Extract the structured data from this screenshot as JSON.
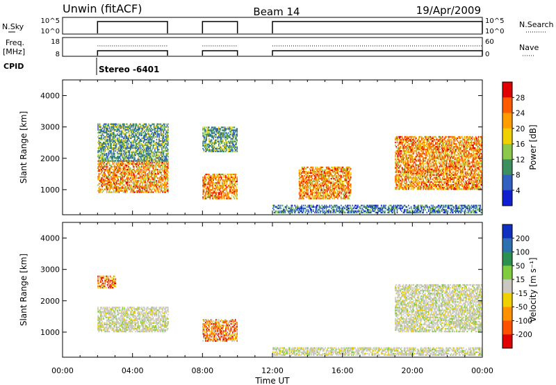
{
  "header": {
    "station": "Unwin (fitACF)",
    "beam": "Beam 14",
    "date": "19/Apr/2009"
  },
  "summary_panels": {
    "nsky_label": "N.Sky",
    "nsky_ticks": [
      "10^5",
      "10^0"
    ],
    "nsearch_label": "N.Search",
    "nsearch_ticks": [
      "10^5",
      "10^0"
    ],
    "freq_label": "Freq.",
    "freq_unit": "[MHz]",
    "freq_ticks": [
      "18",
      "8"
    ],
    "nave_label": "Nave",
    "nave_ticks": [
      "60",
      "0"
    ],
    "cpid_label": "CPID",
    "cpid_value": "Stereo -6401"
  },
  "chart_data": [
    {
      "type": "heatmap",
      "name": "power",
      "ylabel": "Slant Range [km]",
      "yticks": [
        1000,
        2000,
        3000,
        4000
      ],
      "ylim": [
        200,
        4500
      ],
      "xlim": [
        0,
        24
      ],
      "colorbar": {
        "label": "Power [dB]",
        "ticks": [
          "28",
          "24",
          "20",
          "16",
          "12",
          "8",
          "4"
        ],
        "colors": [
          "#e00000",
          "#ff5a00",
          "#ff9c00",
          "#f0d000",
          "#8cc84a",
          "#3c9060",
          "#3060c0",
          "#1020d0"
        ]
      },
      "echo_regions": [
        {
          "t0": 2.0,
          "t1": 6.0,
          "r0": 900,
          "r1": 1900,
          "level": "high"
        },
        {
          "t0": 2.0,
          "t1": 6.0,
          "r0": 1900,
          "r1": 3100,
          "level": "mid"
        },
        {
          "t0": 8.0,
          "t1": 10.0,
          "r0": 700,
          "r1": 1500,
          "level": "high"
        },
        {
          "t0": 8.0,
          "t1": 10.0,
          "r0": 2200,
          "r1": 3000,
          "level": "mid"
        },
        {
          "t0": 12.0,
          "t1": 24.0,
          "r0": 250,
          "r1": 500,
          "level": "low"
        },
        {
          "t0": 13.5,
          "t1": 16.5,
          "r0": 700,
          "r1": 1700,
          "level": "high"
        },
        {
          "t0": 19.0,
          "t1": 24.0,
          "r0": 1000,
          "r1": 2700,
          "level": "high"
        }
      ]
    },
    {
      "type": "heatmap",
      "name": "velocity",
      "xlabel": "Time UT",
      "xticks": [
        "00:00",
        "04:00",
        "08:00",
        "12:00",
        "16:00",
        "20:00",
        "00:00"
      ],
      "ylabel": "Slant Range [km]",
      "yticks": [
        1000,
        2000,
        3000,
        4000
      ],
      "ylim": [
        200,
        4500
      ],
      "xlim": [
        0,
        24
      ],
      "colorbar": {
        "label": "Velocity [m s⁻¹]",
        "ticks": [
          "200",
          "100",
          "50",
          "15",
          "-15",
          "-50",
          "-100",
          "-200"
        ],
        "colors": [
          "#1030c0",
          "#2c70b0",
          "#2c9050",
          "#80cc40",
          "#c8c8c0",
          "#f0d000",
          "#ff9000",
          "#ff5000",
          "#e00000"
        ]
      },
      "echo_regions": [
        {
          "t0": 2.0,
          "t1": 6.0,
          "r0": 1000,
          "r1": 1800,
          "level": "ground"
        },
        {
          "t0": 2.0,
          "t1": 3.0,
          "r0": 2400,
          "r1": 2800,
          "level": "negative"
        },
        {
          "t0": 8.0,
          "t1": 10.0,
          "r0": 700,
          "r1": 1400,
          "level": "negative"
        },
        {
          "t0": 12.0,
          "t1": 24.0,
          "r0": 250,
          "r1": 500,
          "level": "ground"
        },
        {
          "t0": 19.0,
          "t1": 24.0,
          "r0": 1000,
          "r1": 2500,
          "level": "ground"
        }
      ]
    }
  ],
  "operating_intervals": [
    [
      2.0,
      6.0
    ],
    [
      8.0,
      10.0
    ],
    [
      12.0,
      24.0
    ]
  ]
}
